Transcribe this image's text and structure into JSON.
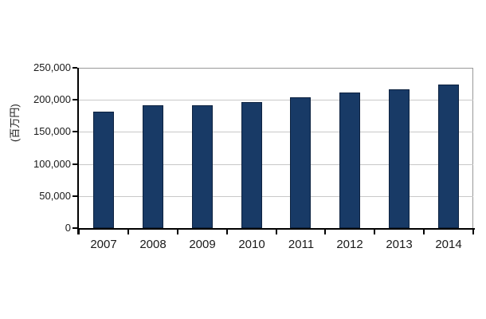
{
  "chart_data": {
    "type": "bar",
    "title": "",
    "categories": [
      "2007",
      "2008",
      "2009",
      "2010",
      "2011",
      "2012",
      "2013",
      "2014"
    ],
    "values": [
      181000,
      191000,
      192000,
      197000,
      204000,
      211000,
      217000,
      224000
    ],
    "xlabel": "",
    "ylabel": "(百万円)",
    "ylim": [
      0,
      250000
    ],
    "ytick_interval": 50000,
    "ytick_labels": [
      "0",
      "50,000",
      "100,000",
      "150,000",
      "200,000",
      "250,000"
    ],
    "grid": true,
    "legend_position": "none",
    "colors": {
      "bar_fill": "#183A66",
      "bar_border": "#0D2240",
      "axis": "#000000",
      "gridline": "#C8C8C8",
      "frame": "#999999",
      "background": "#FFFFFF"
    }
  }
}
